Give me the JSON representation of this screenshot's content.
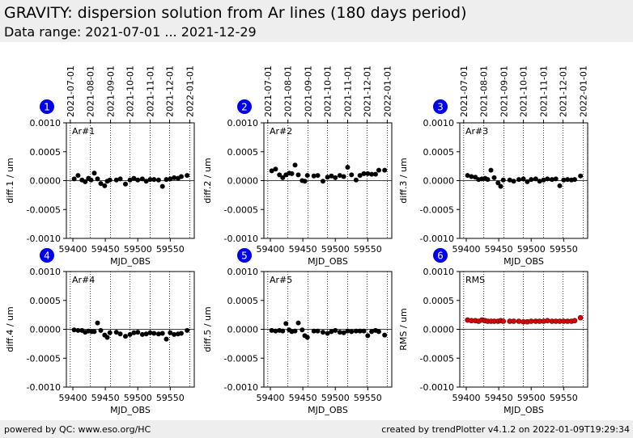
{
  "header": {
    "title": "GRAVITY: dispersion solution from Ar lines (180 days period)",
    "subtitle": "Data range: 2021-07-01 ... 2021-12-29"
  },
  "footer": {
    "left": "powered by QC: www.eso.org/HC",
    "right": "created by trendPlotter v4.1.2 on 2022-01-09T19:29:34"
  },
  "colors": {
    "data": "#000000",
    "rms": "#dd0000",
    "badge": "#0000ee",
    "header_bg": "#eeeeee"
  },
  "date_ticks": [
    "2021-07-01",
    "2021-08-01",
    "2021-09-01",
    "2021-10-01",
    "2021-11-01",
    "2021-12-01",
    "2022-01-01"
  ],
  "date_ticks_mjd": [
    59396,
    59427,
    59458,
    59488,
    59519,
    59549,
    59580
  ],
  "chart_data": [
    {
      "type": "scatter",
      "badge": "1",
      "label": "Ar#1",
      "xlabel": "MJD_OBS",
      "ylabel": "diff.1 / um",
      "xlim": [
        59390,
        59587
      ],
      "ylim": [
        -0.001,
        0.001
      ],
      "xticks": [
        "59400",
        "59450",
        "59500",
        "59550"
      ],
      "xtick_values": [
        59400,
        59450,
        59500,
        59550
      ],
      "yticks": [
        "0.0010",
        "0.0005",
        "0.0000",
        "-0.0005",
        "-0.0010"
      ],
      "ytick_values": [
        0.001,
        0.0005,
        0,
        -0.0005,
        -0.001
      ],
      "x": [
        59402,
        59408,
        59414,
        59419,
        59424,
        59428,
        59433,
        59438,
        59443,
        59449,
        59453,
        59457,
        59467,
        59473,
        59481,
        59488,
        59494,
        59500,
        59507,
        59513,
        59519,
        59525,
        59532,
        59538,
        59544,
        59550,
        59556,
        59562,
        59567,
        59576
      ],
      "y": [
        3e-05,
        9e-05,
        1e-05,
        -2e-05,
        4e-05,
        1e-05,
        0.00013,
        3e-05,
        -5e-05,
        -9e-05,
        -1e-05,
        1e-05,
        1e-05,
        3e-05,
        -6e-05,
        1e-05,
        4e-05,
        1e-05,
        3e-05,
        -1e-05,
        2e-05,
        2e-05,
        1e-05,
        -0.0001,
        2e-05,
        3e-05,
        5e-05,
        4e-05,
        7e-05,
        9e-05
      ]
    },
    {
      "type": "scatter",
      "badge": "2",
      "label": "Ar#2",
      "xlabel": "MJD_OBS",
      "ylabel": "diff.2 / um",
      "xlim": [
        59390,
        59587
      ],
      "ylim": [
        -0.001,
        0.001
      ],
      "xticks": [
        "59400",
        "59450",
        "59500",
        "59550"
      ],
      "xtick_values": [
        59400,
        59450,
        59500,
        59550
      ],
      "yticks": [
        "0.0010",
        "0.0005",
        "0.0000",
        "-0.0005",
        "-0.0010"
      ],
      "ytick_values": [
        0.001,
        0.0005,
        0,
        -0.0005,
        -0.001
      ],
      "x": [
        59402,
        59408,
        59414,
        59419,
        59424,
        59429,
        59433,
        59438,
        59443,
        59449,
        59453,
        59457,
        59467,
        59473,
        59481,
        59488,
        59494,
        59500,
        59507,
        59513,
        59519,
        59525,
        59532,
        59538,
        59544,
        59550,
        59556,
        59562,
        59567,
        59576
      ],
      "y": [
        0.00017,
        0.0002,
        0.0001,
        5e-05,
        0.0001,
        0.00013,
        0.00012,
        0.00027,
        0.0001,
        0,
        -1e-05,
        9e-05,
        8e-05,
        9e-05,
        -1e-05,
        6e-05,
        8e-05,
        5e-05,
        9e-05,
        7e-05,
        0.00023,
        0.0001,
        1e-05,
        9e-05,
        0.00012,
        0.00012,
        0.00011,
        0.00011,
        0.00018,
        0.00018
      ]
    },
    {
      "type": "scatter",
      "badge": "3",
      "label": "Ar#3",
      "xlabel": "MJD_OBS",
      "ylabel": "diff.3 / um",
      "xlim": [
        59390,
        59587
      ],
      "ylim": [
        -0.001,
        0.001
      ],
      "xticks": [
        "59400",
        "59450",
        "59500",
        "59550"
      ],
      "xtick_values": [
        59400,
        59450,
        59500,
        59550
      ],
      "yticks": [
        "0.0010",
        "0.0005",
        "0.0000",
        "-0.0005",
        "-0.0010"
      ],
      "ytick_values": [
        0.001,
        0.0005,
        0,
        -0.0005,
        -0.001
      ],
      "x": [
        59402,
        59408,
        59414,
        59419,
        59424,
        59429,
        59433,
        59438,
        59443,
        59449,
        59453,
        59457,
        59467,
        59473,
        59481,
        59488,
        59494,
        59500,
        59507,
        59513,
        59519,
        59525,
        59532,
        59538,
        59544,
        59550,
        59556,
        59562,
        59567,
        59576
      ],
      "y": [
        9e-05,
        7e-05,
        6e-05,
        2e-05,
        3e-05,
        4e-05,
        2e-05,
        0.00018,
        5e-05,
        -4e-05,
        -0.0001,
        1e-05,
        1e-05,
        -1e-05,
        2e-05,
        3e-05,
        -2e-05,
        2e-05,
        3e-05,
        -1e-05,
        1e-05,
        3e-05,
        2e-05,
        3e-05,
        -9e-05,
        1e-05,
        2e-05,
        1e-05,
        2e-05,
        8e-05
      ]
    },
    {
      "type": "scatter",
      "badge": "4",
      "label": "Ar#4",
      "xlabel": "MJD_OBS",
      "ylabel": "diff.4 / um",
      "xlim": [
        59390,
        59587
      ],
      "ylim": [
        -0.001,
        0.001
      ],
      "xticks": [
        "59400",
        "59450",
        "59500",
        "59550"
      ],
      "xtick_values": [
        59400,
        59450,
        59500,
        59550
      ],
      "yticks": [
        "0.0010",
        "0.0005",
        "0.0000",
        "-0.0005",
        "-0.0010"
      ],
      "ytick_values": [
        0.001,
        0.0005,
        0,
        -0.0005,
        -0.001
      ],
      "x": [
        59402,
        59408,
        59414,
        59419,
        59424,
        59429,
        59433,
        59438,
        59443,
        59449,
        59453,
        59457,
        59467,
        59473,
        59481,
        59488,
        59494,
        59500,
        59507,
        59513,
        59519,
        59525,
        59532,
        59538,
        59544,
        59550,
        59556,
        59562,
        59567,
        59576
      ],
      "y": [
        -1e-05,
        -2e-05,
        -2e-05,
        -5e-05,
        -3e-05,
        -4e-05,
        -4e-05,
        0.00011,
        -2e-05,
        -0.0001,
        -0.00014,
        -6e-05,
        -5e-05,
        -8e-05,
        -0.00012,
        -9e-05,
        -6e-05,
        -5e-05,
        -9e-05,
        -8e-05,
        -6e-05,
        -7e-05,
        -8e-05,
        -7e-05,
        -0.00017,
        -6e-05,
        -9e-05,
        -8e-05,
        -7e-05,
        -2e-05
      ]
    },
    {
      "type": "scatter",
      "badge": "5",
      "label": "Ar#5",
      "xlabel": "MJD_OBS",
      "ylabel": "diff.5 / um",
      "xlim": [
        59390,
        59587
      ],
      "ylim": [
        -0.001,
        0.001
      ],
      "xticks": [
        "59400",
        "59450",
        "59500",
        "59550"
      ],
      "xtick_values": [
        59400,
        59450,
        59500,
        59550
      ],
      "yticks": [
        "0.0010",
        "0.0005",
        "0.0000",
        "-0.0005",
        "-0.0010"
      ],
      "ytick_values": [
        0.001,
        0.0005,
        0,
        -0.0005,
        -0.001
      ],
      "x": [
        59402,
        59408,
        59414,
        59419,
        59424,
        59429,
        59433,
        59438,
        59443,
        59449,
        59453,
        59457,
        59467,
        59473,
        59481,
        59488,
        59494,
        59500,
        59507,
        59513,
        59519,
        59525,
        59532,
        59538,
        59544,
        59550,
        59556,
        59562,
        59567,
        59576
      ],
      "y": [
        -2e-05,
        -3e-05,
        -2e-05,
        -3e-05,
        0.0001,
        -1e-05,
        -4e-05,
        -3e-05,
        0.00011,
        -1e-05,
        -0.00011,
        -0.00014,
        -3e-05,
        -3e-05,
        -5e-05,
        -7e-05,
        -4e-05,
        -2e-05,
        -5e-05,
        -6e-05,
        -3e-05,
        -4e-05,
        -3e-05,
        -3e-05,
        -3e-05,
        -0.00011,
        -4e-05,
        -2e-05,
        -4e-05,
        -0.0001
      ]
    },
    {
      "type": "scatter",
      "badge": "6",
      "label": "RMS",
      "xlabel": "MJD_OBS",
      "ylabel": "RMS / um",
      "xlim": [
        59390,
        59587
      ],
      "ylim": [
        -0.001,
        0.001
      ],
      "xticks": [
        "59400",
        "59450",
        "59500",
        "59550"
      ],
      "xtick_values": [
        59400,
        59450,
        59500,
        59550
      ],
      "yticks": [
        "0.0010",
        "0.0005",
        "0.0000",
        "-0.0005",
        "-0.0010"
      ],
      "ytick_values": [
        0.001,
        0.0005,
        0,
        -0.0005,
        -0.001
      ],
      "x": [
        59402,
        59408,
        59414,
        59419,
        59424,
        59429,
        59433,
        59438,
        59443,
        59449,
        59453,
        59457,
        59467,
        59473,
        59481,
        59488,
        59494,
        59500,
        59507,
        59513,
        59519,
        59525,
        59532,
        59538,
        59544,
        59550,
        59556,
        59562,
        59567,
        59576
      ],
      "y": [
        0.00016,
        0.00015,
        0.00015,
        0.00014,
        0.00016,
        0.00015,
        0.00014,
        0.00014,
        0.00014,
        0.00014,
        0.00015,
        0.00014,
        0.00014,
        0.00014,
        0.00014,
        0.00013,
        0.00013,
        0.00014,
        0.00014,
        0.00014,
        0.00014,
        0.00015,
        0.00014,
        0.00014,
        0.00014,
        0.00014,
        0.00014,
        0.00014,
        0.00015,
        0.0002
      ]
    }
  ]
}
